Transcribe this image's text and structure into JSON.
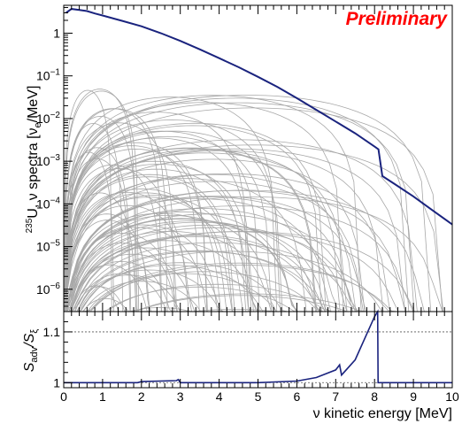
{
  "chart_data": [
    {
      "type": "line",
      "panel": "top",
      "yscale": "log",
      "ylim": [
        3e-07,
        4.5
      ],
      "xlim": [
        0,
        10
      ],
      "annotation": "Preliminary",
      "annotation_color": "#ff0000",
      "ylabel": {
        "pre": "235",
        "main": "U, ν spectra  [ν",
        "sub": "e",
        "post": "/MeV]"
      },
      "ytick_labels": [
        {
          "value": 1,
          "label": "1"
        },
        {
          "value": 0.1,
          "base": "10",
          "exp": "−1"
        },
        {
          "value": 0.01,
          "base": "10",
          "exp": "−2"
        },
        {
          "value": 0.001,
          "base": "10",
          "exp": "−3"
        },
        {
          "value": 0.0001,
          "base": "10",
          "exp": "−4"
        },
        {
          "value": 1e-05,
          "base": "10",
          "exp": "−5"
        },
        {
          "value": 1e-06,
          "base": "10",
          "exp": "−6"
        }
      ],
      "series": [
        {
          "color": "#1a237e",
          "x": [
            0.06,
            0.2,
            0.4,
            0.6,
            0.8,
            1.0,
            1.5,
            2.0,
            2.5,
            3.0,
            3.5,
            4.0,
            4.5,
            5.0,
            5.5,
            6.0,
            6.5,
            7.0,
            7.5,
            8.0,
            8.1,
            8.2,
            8.5,
            9.0,
            9.5,
            10.0
          ],
          "y": [
            3.0,
            3.7,
            3.5,
            3.3,
            2.9,
            2.6,
            1.95,
            1.45,
            1.0,
            0.66,
            0.42,
            0.26,
            0.16,
            0.095,
            0.055,
            0.03,
            0.016,
            0.0085,
            0.0045,
            0.0022,
            0.0019,
            0.00045,
            0.0003,
            0.00015,
            7e-05,
            3.3e-05
          ]
        }
      ],
      "background_curves": {
        "count": 140,
        "color": "#a8a8a8"
      }
    },
    {
      "type": "line",
      "panel": "bottom",
      "xlim": [
        0,
        10
      ],
      "ylim": [
        0.99,
        1.14
      ],
      "xlabel": "ν kinetic energy  [MeV]",
      "ylabel": {
        "s1": "S",
        "sub1": "adv",
        "mid": "/S",
        "sub2": "ξ"
      },
      "ytick_labels": [
        {
          "value": 1,
          "label": "1"
        },
        {
          "value": 1.1,
          "label": "1.1"
        }
      ],
      "dotted_lines": [
        1.0,
        1.1
      ],
      "xtick_labels": [
        "0",
        "1",
        "2",
        "3",
        "4",
        "5",
        "6",
        "7",
        "8",
        "9",
        "10"
      ],
      "series": [
        {
          "color": "#1a237e",
          "x": [
            0,
            1.9,
            2.0,
            2.9,
            2.95,
            3.0,
            5.0,
            6.0,
            6.5,
            7.0,
            7.1,
            7.15,
            7.5,
            8.0,
            8.08,
            8.09,
            8.12,
            10.0
          ],
          "y": [
            1.0,
            1.0,
            1.002,
            1.004,
            1.006,
            1.0,
            1.0,
            1.003,
            1.01,
            1.025,
            1.035,
            1.015,
            1.045,
            1.13,
            1.14,
            1.0,
            1.0,
            1.0
          ]
        }
      ]
    }
  ]
}
